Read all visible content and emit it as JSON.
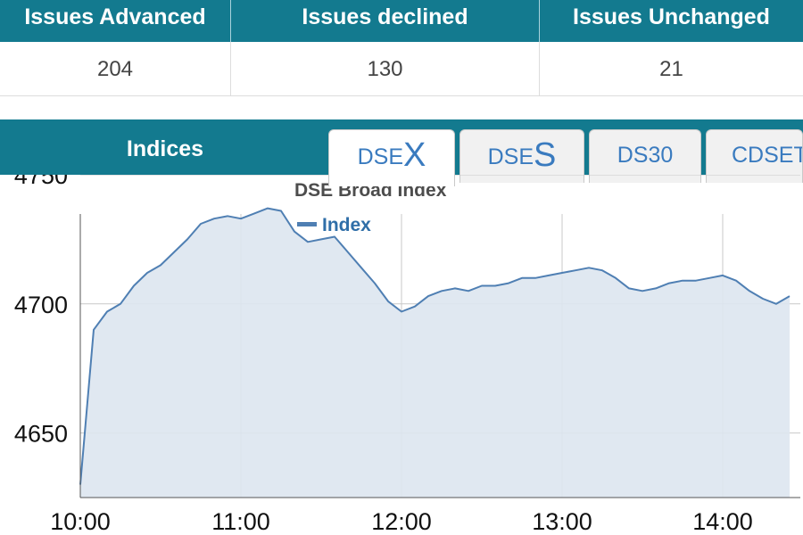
{
  "issues": {
    "headers": [
      "Issues Advanced",
      "Issues declined",
      "Issues Unchanged"
    ],
    "values": [
      "204",
      "130",
      "21"
    ]
  },
  "indices": {
    "title": "Indices",
    "tabs": [
      {
        "prefix": "DSE",
        "big": "X",
        "active": true
      },
      {
        "prefix": "DSE",
        "big": "S",
        "active": false
      },
      {
        "prefix": "DS30",
        "big": "",
        "active": false
      },
      {
        "prefix": "CDSET",
        "big": "",
        "active": false
      }
    ]
  },
  "colors": {
    "header_bg": "#137a8f",
    "line": "#4f7fb3",
    "area": "#dde6ef",
    "tab_text": "#3a7bbf"
  },
  "chart_data": {
    "type": "area",
    "title": "DSE Broad Index",
    "series": [
      {
        "name": "Index",
        "x": [
          "10:00",
          "10:05",
          "10:10",
          "10:15",
          "10:20",
          "10:25",
          "10:30",
          "10:35",
          "10:40",
          "10:45",
          "10:50",
          "10:55",
          "11:00",
          "11:05",
          "11:10",
          "11:15",
          "11:20",
          "11:25",
          "11:30",
          "11:35",
          "11:40",
          "11:45",
          "11:50",
          "11:55",
          "12:00",
          "12:05",
          "12:10",
          "12:15",
          "12:20",
          "12:25",
          "12:30",
          "12:35",
          "12:40",
          "12:45",
          "12:50",
          "12:55",
          "13:00",
          "13:05",
          "13:10",
          "13:15",
          "13:20",
          "13:25",
          "13:30",
          "13:35",
          "13:40",
          "13:45",
          "13:50",
          "13:55",
          "14:00",
          "14:05",
          "14:10",
          "14:15",
          "14:20",
          "14:25"
        ],
        "values": [
          4630,
          4690,
          4697,
          4700,
          4707,
          4712,
          4715,
          4720,
          4725,
          4731,
          4733,
          4734,
          4733,
          4735,
          4737,
          4736,
          4728,
          4724,
          4725,
          4726,
          4720,
          4714,
          4708,
          4701,
          4697,
          4699,
          4703,
          4705,
          4706,
          4705,
          4707,
          4707,
          4708,
          4710,
          4710,
          4711,
          4712,
          4713,
          4714,
          4713,
          4710,
          4706,
          4705,
          4706,
          4708,
          4709,
          4709,
          4710,
          4711,
          4709,
          4705,
          4702,
          4700,
          4703
        ]
      }
    ],
    "xticks": [
      "10:00",
      "11:00",
      "12:00",
      "13:00",
      "14:00"
    ],
    "yticks": [
      4650,
      4700,
      4750
    ],
    "ylim": [
      4625,
      4750
    ],
    "legend": "top-left",
    "grid": true
  }
}
